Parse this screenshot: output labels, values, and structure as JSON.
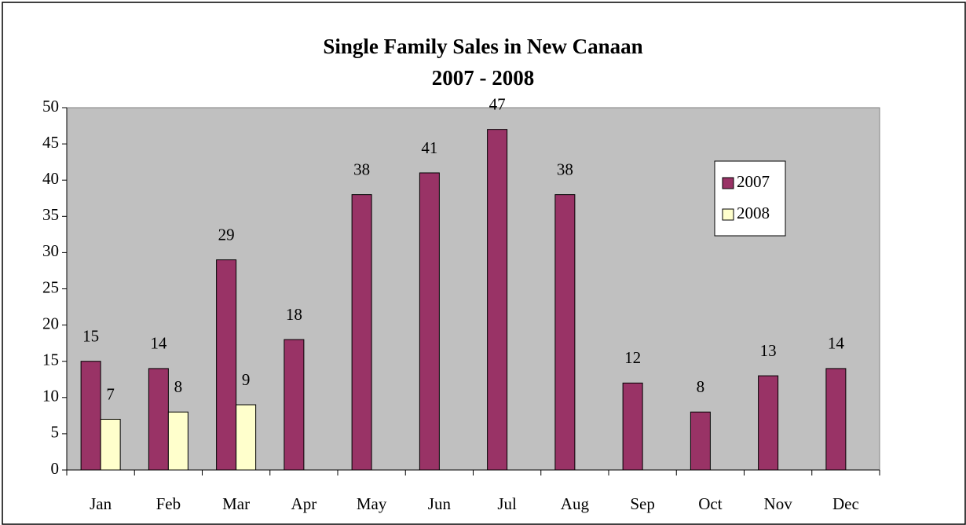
{
  "chart_data": {
    "type": "bar",
    "title": "Single Family Sales in New Canaan",
    "subtitle": "2007 - 2008",
    "categories": [
      "Jan",
      "Feb",
      "Mar",
      "Apr",
      "May",
      "Jun",
      "Jul",
      "Aug",
      "Sep",
      "Oct",
      "Nov",
      "Dec"
    ],
    "series": [
      {
        "name": "2007",
        "color": "#993366",
        "values": [
          15,
          14,
          29,
          18,
          38,
          41,
          47,
          38,
          12,
          8,
          13,
          14
        ]
      },
      {
        "name": "2008",
        "color": "#ffffcc",
        "values": [
          7,
          8,
          9,
          null,
          null,
          null,
          null,
          null,
          null,
          null,
          null,
          null
        ]
      }
    ],
    "ylim": [
      0,
      50
    ],
    "yticks": [
      0,
      5,
      10,
      15,
      20,
      25,
      30,
      35,
      40,
      45,
      50
    ],
    "grid": false,
    "legend": "right",
    "plot_background": "#c0c0c0"
  }
}
